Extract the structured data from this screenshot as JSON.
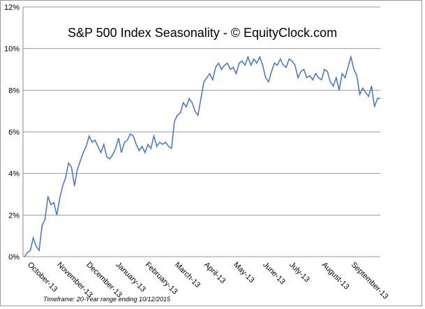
{
  "chart_data": {
    "type": "line",
    "title": "S&P 500 Index Seasonality - © EquityClock.com",
    "footnote": "Timeframe: 20-Year range ending 10/12/2015",
    "categories": [
      null,
      "October-13",
      null,
      null,
      null,
      null,
      null,
      null,
      null,
      null,
      null,
      "November-13",
      null,
      null,
      null,
      null,
      null,
      null,
      null,
      null,
      null,
      "December-13",
      null,
      null,
      null,
      null,
      null,
      null,
      null,
      null,
      null,
      "January-13",
      null,
      null,
      null,
      null,
      null,
      null,
      null,
      null,
      null,
      "February-13",
      null,
      null,
      null,
      null,
      null,
      null,
      null,
      null,
      null,
      "March-13",
      null,
      null,
      null,
      null,
      null,
      null,
      null,
      null,
      null,
      "April-13",
      null,
      null,
      null,
      null,
      null,
      null,
      null,
      null,
      null,
      "May-13",
      null,
      null,
      null,
      null,
      null,
      null,
      null,
      null,
      null,
      "June-13",
      null,
      null,
      null,
      null,
      null,
      null,
      null,
      null,
      "July-13",
      null,
      null,
      null,
      null,
      null,
      null,
      null,
      null,
      null,
      null,
      "August-13",
      null,
      null,
      null,
      null,
      null,
      null,
      null,
      null,
      null,
      "September-13",
      null,
      null,
      null,
      null,
      null,
      null,
      null,
      null,
      null,
      null
    ],
    "series": [
      {
        "color": "#4472c4",
        "values": [
          0,
          0.2,
          0.3,
          0.9,
          0.5,
          0.3,
          1.5,
          1.8,
          2.9,
          2.5,
          2.6,
          2.0,
          2.8,
          3.4,
          3.8,
          4.5,
          4.3,
          3.4,
          4.2,
          4.6,
          5.0,
          5.3,
          5.8,
          5.5,
          5.6,
          5.3,
          5.0,
          5.4,
          4.8,
          4.7,
          4.9,
          5.2,
          5.7,
          5.0,
          5.5,
          5.6,
          5.9,
          5.8,
          5.4,
          5.1,
          5.3,
          5.0,
          5.4,
          5.2,
          5.8,
          5.3,
          5.5,
          5.4,
          5.5,
          5.3,
          5.2,
          6.5,
          6.8,
          6.9,
          7.4,
          7.2,
          7.6,
          7.4,
          7.0,
          6.8,
          7.6,
          8.4,
          8.6,
          8.8,
          8.5,
          9.1,
          9.3,
          9.0,
          9.2,
          9.3,
          9.0,
          9.1,
          8.8,
          9.3,
          9.4,
          9.2,
          9.6,
          9.2,
          9.5,
          9.3,
          9.6,
          9.2,
          8.6,
          8.4,
          8.9,
          9.3,
          9.2,
          9.5,
          9.2,
          9.1,
          9.5,
          9.4,
          9.2,
          8.6,
          8.9,
          9.0,
          8.6,
          8.7,
          8.5,
          8.8,
          8.6,
          8.5,
          9.0,
          8.9,
          8.4,
          8.2,
          8.6,
          8.0,
          8.8,
          8.6,
          9.1,
          9.6,
          9.0,
          8.7,
          7.8,
          8.1,
          7.9,
          7.7,
          8.2,
          7.2,
          7.6,
          7.6
        ]
      }
    ],
    "ylim": [
      0,
      12
    ],
    "yticks": [
      {
        "value": 0,
        "label": "0%"
      },
      {
        "value": 2,
        "label": "2%"
      },
      {
        "value": 4,
        "label": "4%"
      },
      {
        "value": 6,
        "label": "6%"
      },
      {
        "value": 8,
        "label": "8%"
      },
      {
        "value": 10,
        "label": "10%"
      },
      {
        "value": 12,
        "label": "12%"
      }
    ],
    "grid": true
  }
}
